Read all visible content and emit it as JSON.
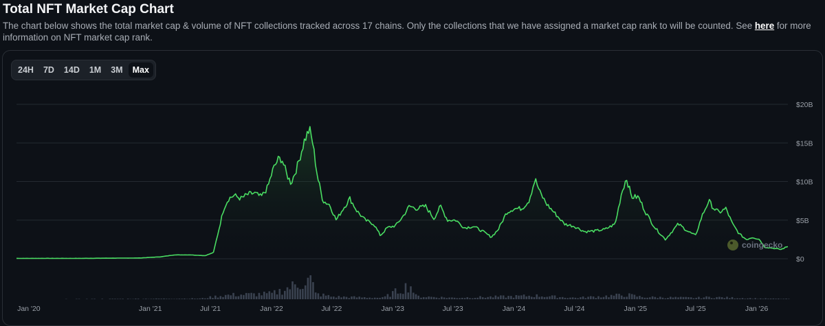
{
  "header": {
    "title": "Total NFT Market Cap Chart",
    "desc_before": "The chart below shows the total market cap & volume of NFT collections tracked across 17 chains. Only the collections that we have assigned a market cap rank to will be counted. See ",
    "desc_link": "here",
    "desc_after": " for more information on NFT market cap rank."
  },
  "range_tabs": [
    "24H",
    "7D",
    "14D",
    "1M",
    "3M",
    "Max"
  ],
  "active_tab": "Max",
  "watermark": "coingecko",
  "colors": {
    "line": "#4ade63",
    "volume": "#3a4250",
    "grid": "#242a31",
    "background": "#0d1117"
  },
  "chart_data": {
    "type": "area",
    "title": "",
    "y_axis": {
      "min": 0,
      "max": 20000000000,
      "ticks": [
        "$0",
        "$5B",
        "$10B",
        "$15B",
        "$20B"
      ],
      "tick_values": [
        0,
        5000000000,
        10000000000,
        15000000000,
        20000000000
      ],
      "position": "right"
    },
    "x_axis": {
      "start": "2019-11-25",
      "end": "2026-04-05",
      "tick_labels": [
        "Jan '20",
        "Jan '21",
        "Jul '21",
        "Jan '22",
        "Jul '22",
        "Jan '23",
        "Jul '23",
        "Jan '24",
        "Jul '24",
        "Jan '25",
        "Jul '25",
        "Jan '26"
      ],
      "tick_dates": [
        "2020-01-01",
        "2021-01-01",
        "2021-07-01",
        "2022-01-01",
        "2022-07-01",
        "2023-01-01",
        "2023-07-01",
        "2024-01-01",
        "2024-07-01",
        "2025-01-01",
        "2025-07-01",
        "2026-01-01"
      ]
    },
    "grid": true,
    "series": [
      {
        "kind": "market_cap",
        "unit": "USD billions",
        "points": [
          [
            "2019-11-25",
            0.05
          ],
          [
            "2020-06-01",
            0.05
          ],
          [
            "2020-12-01",
            0.1
          ],
          [
            "2021-02-01",
            0.25
          ],
          [
            "2021-03-15",
            0.5
          ],
          [
            "2021-05-01",
            0.5
          ],
          [
            "2021-06-15",
            0.4
          ],
          [
            "2021-07-10",
            0.8
          ],
          [
            "2021-07-25",
            3.5
          ],
          [
            "2021-08-10",
            6.5
          ],
          [
            "2021-08-25",
            7.8
          ],
          [
            "2021-09-10",
            8.2
          ],
          [
            "2021-10-01",
            7.8
          ],
          [
            "2021-10-20",
            8.3
          ],
          [
            "2021-11-10",
            8.5
          ],
          [
            "2021-12-01",
            8.0
          ],
          [
            "2021-12-20",
            9.2
          ],
          [
            "2022-01-05",
            11.5
          ],
          [
            "2022-01-20",
            12.8
          ],
          [
            "2022-02-01",
            13.0
          ],
          [
            "2022-02-15",
            11.0
          ],
          [
            "2022-03-01",
            9.8
          ],
          [
            "2022-03-20",
            12.0
          ],
          [
            "2022-04-10",
            15.3
          ],
          [
            "2022-04-25",
            16.8
          ],
          [
            "2022-05-05",
            15.0
          ],
          [
            "2022-05-20",
            10.5
          ],
          [
            "2022-06-05",
            7.5
          ],
          [
            "2022-06-25",
            7.0
          ],
          [
            "2022-07-15",
            5.0
          ],
          [
            "2022-08-05",
            6.5
          ],
          [
            "2022-08-25",
            7.8
          ],
          [
            "2022-09-15",
            6.2
          ],
          [
            "2022-10-10",
            5.0
          ],
          [
            "2022-11-05",
            4.5
          ],
          [
            "2022-11-25",
            3.0
          ],
          [
            "2022-12-15",
            4.0
          ],
          [
            "2023-01-10",
            4.3
          ],
          [
            "2023-02-01",
            5.5
          ],
          [
            "2023-02-20",
            6.8
          ],
          [
            "2023-03-15",
            6.5
          ],
          [
            "2023-04-10",
            6.8
          ],
          [
            "2023-05-05",
            5.2
          ],
          [
            "2023-05-25",
            6.8
          ],
          [
            "2023-06-15",
            5.0
          ],
          [
            "2023-07-10",
            5.0
          ],
          [
            "2023-08-05",
            4.0
          ],
          [
            "2023-09-01",
            4.2
          ],
          [
            "2023-10-01",
            3.5
          ],
          [
            "2023-10-25",
            2.8
          ],
          [
            "2023-11-15",
            3.8
          ],
          [
            "2023-12-10",
            6.0
          ],
          [
            "2024-01-01",
            6.5
          ],
          [
            "2024-01-25",
            6.5
          ],
          [
            "2024-02-15",
            7.5
          ],
          [
            "2024-03-05",
            10.3
          ],
          [
            "2024-03-20",
            8.5
          ],
          [
            "2024-04-10",
            7.0
          ],
          [
            "2024-05-01",
            6.0
          ],
          [
            "2024-06-01",
            4.5
          ],
          [
            "2024-07-01",
            4.2
          ],
          [
            "2024-08-01",
            3.5
          ],
          [
            "2024-09-01",
            3.6
          ],
          [
            "2024-10-01",
            3.8
          ],
          [
            "2024-11-01",
            4.5
          ],
          [
            "2024-11-20",
            8.5
          ],
          [
            "2024-12-05",
            10.5
          ],
          [
            "2024-12-20",
            8.0
          ],
          [
            "2025-01-10",
            8.0
          ],
          [
            "2025-02-01",
            6.0
          ],
          [
            "2025-03-01",
            4.0
          ],
          [
            "2025-04-01",
            2.5
          ],
          [
            "2025-05-10",
            4.5
          ],
          [
            "2025-06-10",
            3.5
          ],
          [
            "2025-07-01",
            3.0
          ],
          [
            "2025-07-20",
            5.5
          ],
          [
            "2025-08-10",
            7.5
          ],
          [
            "2025-08-25",
            6.5
          ],
          [
            "2025-09-10",
            6.0
          ],
          [
            "2025-10-01",
            6.5
          ],
          [
            "2025-10-20",
            4.5
          ],
          [
            "2025-11-10",
            3.2
          ],
          [
            "2025-12-01",
            2.5
          ],
          [
            "2025-12-20",
            2.8
          ],
          [
            "2026-01-10",
            2.5
          ],
          [
            "2026-01-25",
            1.5
          ],
          [
            "2026-02-15",
            1.4
          ],
          [
            "2026-03-15",
            1.2
          ],
          [
            "2026-04-05",
            1.6
          ]
        ]
      },
      {
        "kind": "volume",
        "unit": "relative",
        "points": [
          [
            "2019-11-25",
            0
          ],
          [
            "2021-06-01",
            0.02
          ],
          [
            "2021-08-01",
            0.1
          ],
          [
            "2021-09-01",
            0.12
          ],
          [
            "2022-01-01",
            0.15
          ],
          [
            "2022-04-28",
            0.55
          ],
          [
            "2022-05-10",
            0.15
          ],
          [
            "2022-07-01",
            0.07
          ],
          [
            "2022-12-01",
            0.04
          ],
          [
            "2023-02-20",
            0.4
          ],
          [
            "2023-03-10",
            0.08
          ],
          [
            "2023-07-01",
            0.04
          ],
          [
            "2024-01-01",
            0.08
          ],
          [
            "2024-03-01",
            0.1
          ],
          [
            "2024-07-01",
            0.04
          ],
          [
            "2024-12-05",
            0.12
          ],
          [
            "2025-01-20",
            0.06
          ],
          [
            "2025-07-01",
            0.04
          ],
          [
            "2025-08-10",
            0.06
          ],
          [
            "2026-01-01",
            0.02
          ],
          [
            "2026-04-05",
            0.01
          ]
        ]
      }
    ]
  }
}
